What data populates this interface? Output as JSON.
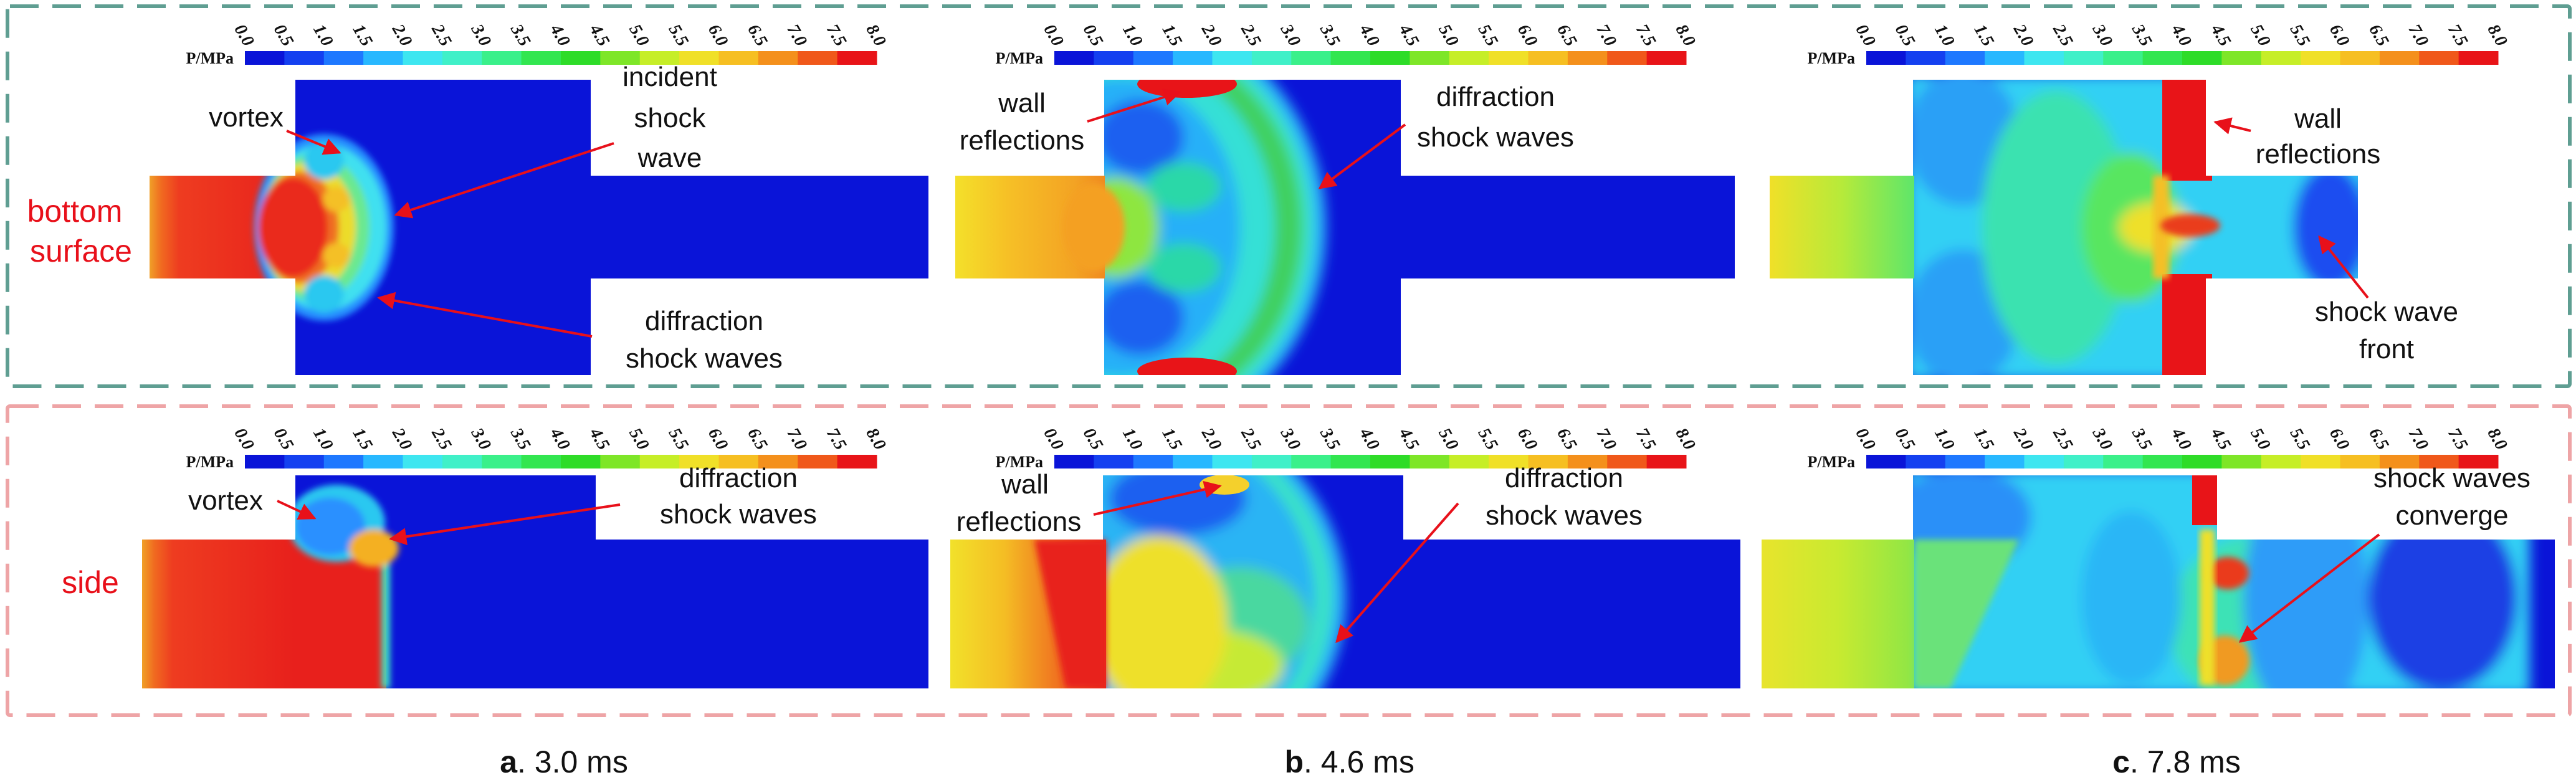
{
  "row_labels": {
    "top_line1": "bottom",
    "top_line2": "surface",
    "bottom": "side"
  },
  "colorbar": {
    "unit": "P/MPa",
    "ticks": [
      "0.0",
      "0.5",
      "1.0",
      "1.5",
      "2.0",
      "2.5",
      "3.0",
      "3.5",
      "4.0",
      "4.5",
      "5.0",
      "5.5",
      "6.0",
      "6.5",
      "7.0",
      "7.5",
      "8.0"
    ],
    "colors": [
      "#0a14d8",
      "#1440f0",
      "#1e78ff",
      "#28b8ff",
      "#3ee6f0",
      "#40f0c8",
      "#3af08a",
      "#32e650",
      "#2edc28",
      "#7ee628",
      "#c6ee28",
      "#f0e028",
      "#f6bf22",
      "#f4901c",
      "#f0581a",
      "#e81418"
    ]
  },
  "captions": [
    {
      "letter": "a",
      "text": ". 3.0 ms"
    },
    {
      "letter": "b",
      "text": ". 4.6 ms"
    },
    {
      "letter": "c",
      "text": ". 7.8 ms"
    }
  ],
  "annotations": {
    "a_top": {
      "vortex": "vortex",
      "incident_1": "incident",
      "incident_2": "shock",
      "incident_3": "wave",
      "diff_1": "diffraction",
      "diff_2": "shock waves"
    },
    "b_top": {
      "wall_1": "wall",
      "wall_2": "reflections",
      "diff_1": "diffraction",
      "diff_2": "shock waves"
    },
    "c_top": {
      "wall_1": "wall",
      "wall_2": "reflections",
      "front_1": "shock wave",
      "front_2": "front"
    },
    "a_bot": {
      "vortex": "vortex",
      "diff_1": "diffraction",
      "diff_2": "shock waves"
    },
    "b_bot": {
      "wall_1": "wall",
      "wall_2": "reflections",
      "diff_1": "diffraction",
      "diff_2": "shock waves"
    },
    "c_bot": {
      "conv_1": "shock waves",
      "conv_2": "converge"
    }
  },
  "colors": {
    "top_frame": "#5f9e92",
    "bottom_frame": "#eea4a6",
    "arrow": "#e8101a",
    "row_label": "#e8101a"
  }
}
